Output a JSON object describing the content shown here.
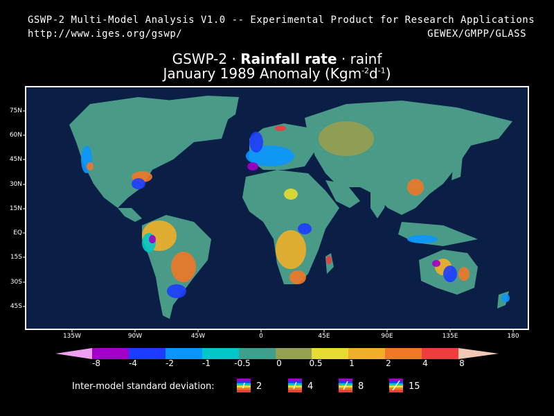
{
  "header": {
    "line1": "GSWP-2 Multi-Model Analysis V1.0 -- Experimental Product for Research Applications",
    "url": "http://www.iges.org/gswp/",
    "org": "GEWEX/GMPP/GLASS"
  },
  "title": {
    "prefix": "GSWP-2 · ",
    "variable": "Rainfall rate",
    "suffix": " · rainf",
    "line2_before": "January 1989 Anomaly (Kgm",
    "sup1": "-2",
    "mid": "d",
    "sup2": "-1",
    "line2_after": ")"
  },
  "map": {
    "lat_labels": [
      "75N",
      "60N",
      "45N",
      "30N",
      "15N",
      "EQ",
      "15S",
      "30S",
      "45S"
    ],
    "lon_labels": [
      "135W",
      "90W",
      "45W",
      "0",
      "45E",
      "90E",
      "135E",
      "180"
    ],
    "ocean_color": "#0a1e46",
    "frame_color": "#ffffff"
  },
  "colorbar": {
    "labels": [
      "-8",
      "-4",
      "-2",
      "-1",
      "-0.5",
      "0",
      "0.5",
      "1",
      "2",
      "4",
      "8"
    ],
    "colors": [
      "#f0a0f0",
      "#a000c8",
      "#1e3cff",
      "#0a96ff",
      "#00c8c8",
      "#3ca08c",
      "#96a050",
      "#e6dc32",
      "#f0af28",
      "#f07828",
      "#f03c3c",
      "#f0c8b4"
    ]
  },
  "std_dev": {
    "label": "Inter-model standard deviation:",
    "values": [
      "2",
      "4",
      "8",
      "15"
    ]
  }
}
